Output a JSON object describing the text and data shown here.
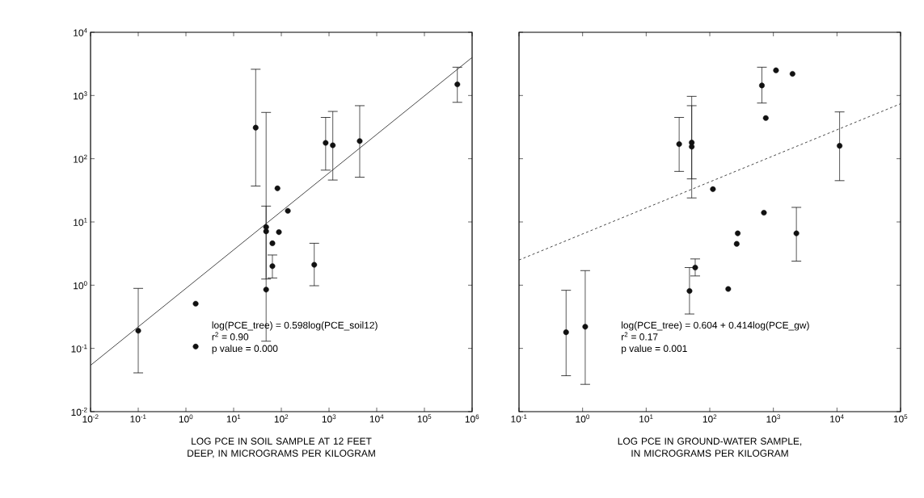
{
  "chart_data": [
    {
      "type": "scatter",
      "xlabel": "LOG PCE IN SOIL SAMPLE AT 12 FEET DEEP, IN MICROGRAMS PER KILOGRAM",
      "log": "xy",
      "xlim": [
        0.01,
        1000000
      ],
      "ylim": [
        0.01,
        10000
      ],
      "xticks": [
        {
          "value": 0.01,
          "label": "10$^{-2}$"
        },
        {
          "value": 0.1,
          "label": "10$^{-1}$"
        },
        {
          "value": 1,
          "label": "10$^{0}$"
        },
        {
          "value": 10,
          "label": "10$^{1}$"
        },
        {
          "value": 100,
          "label": "10$^{2}$"
        },
        {
          "value": 1000,
          "label": "10$^{3}$"
        },
        {
          "value": 10000,
          "label": "10$^{4}$"
        },
        {
          "value": 100000,
          "label": "10$^{5}$"
        },
        {
          "value": 1000000,
          "label": "10$^{6}$"
        }
      ],
      "yticks": [
        {
          "value": 0.01,
          "label": "10$^{-2}$"
        },
        {
          "value": 0.1,
          "label": "10$^{-1}$"
        },
        {
          "value": 1,
          "label": "10$^{0}$"
        },
        {
          "value": 10,
          "label": "10$^{1}$"
        },
        {
          "value": 100,
          "label": "10$^{2}$"
        },
        {
          "value": 1000,
          "label": "10$^{3}$"
        },
        {
          "value": 10000,
          "label": "10$^{4}$"
        }
      ],
      "annotations": [
        "log(PCE_tree) = 0.598log(PCE_soil12)",
        "r$^{2}$ = 0.90",
        "p value = 0.000"
      ],
      "series": [
        {
          "color": "#111111",
          "marker": "circle",
          "x": [
            29,
            48,
            48,
            48,
            65,
            65,
            83,
            89,
            137,
            850,
            1200,
            4400,
            490000,
            490,
            0.1,
            1.6,
            1.6
          ],
          "values": [
            310,
            8.3,
            7.1,
            0.85,
            2.0,
            4.6,
            34,
            6.9,
            15,
            178,
            163,
            190,
            1500,
            2.1,
            0.19,
            0.51,
            0.107
          ],
          "errors": [
            [
              37,
              2600
            ],
            [
              1.25,
              17.8
            ],
            null,
            [
              0.13,
              540
            ],
            [
              1.3,
              3.0
            ],
            null,
            null,
            null,
            null,
            [
              66,
              450
            ],
            [
              46,
              560
            ],
            [
              51,
              690
            ],
            [
              780,
              2800
            ],
            [
              0.98,
              4.6
            ],
            [
              0.041,
              0.89
            ],
            null,
            null
          ]
        },
        {
          "type": "line",
          "color": "#333333",
          "line_style": "solid",
          "marker": "none",
          "x": [
            0.01,
            1000000
          ],
          "values": [
            0.054,
            4000
          ]
        }
      ]
    },
    {
      "type": "scatter",
      "xlabel": "LOG PCE IN GROUND-WATER SAMPLE, IN MICROGRAMS PER KILOGRAM",
      "log": "xy",
      "tick_labels": "x",
      "xlim": [
        0.1,
        100000
      ],
      "ylim": [
        0.01,
        10000
      ],
      "xticks": [
        {
          "value": 0.1,
          "label": "10$^{-1}$"
        },
        {
          "value": 1,
          "label": "10$^{0}$"
        },
        {
          "value": 10,
          "label": "10$^{1}$"
        },
        {
          "value": 100,
          "label": "10$^{2}$"
        },
        {
          "value": 1000,
          "label": "10$^{3}$"
        },
        {
          "value": 10000,
          "label": "10$^{4}$"
        },
        {
          "value": 100000,
          "label": "10$^{5}$"
        }
      ],
      "yticks": [
        {
          "value": 0.01,
          "label": null
        },
        {
          "value": 0.1,
          "label": null
        },
        {
          "value": 1,
          "label": null
        },
        {
          "value": 10,
          "label": null
        },
        {
          "value": 100,
          "label": null
        },
        {
          "value": 1000,
          "label": null
        },
        {
          "value": 10000,
          "label": null
        }
      ],
      "annotations": [
        "log(PCE_tree) = 0.604 + 0.414log(PCE_gw)",
        "r$^{2}$ = 0.17",
        "p value = 0.001"
      ],
      "series": [
        {
          "color": "#111111",
          "marker": "circle",
          "x": [
            33,
            52,
            52,
            112,
            660,
            1100,
            2000,
            760,
            11000,
            710,
            275,
            265,
            2300,
            59,
            48,
            195,
            0.55,
            1.1
          ],
          "values": [
            170,
            180,
            155,
            33,
            1440,
            2500,
            2200,
            440,
            160,
            14,
            6.6,
            4.5,
            6.6,
            1.9,
            0.81,
            0.87,
            0.18,
            0.22
          ],
          "errors": [
            [
              63,
              450
            ],
            [
              24,
              970
            ],
            [
              48,
              690
            ],
            null,
            [
              760,
              2800
            ],
            null,
            null,
            null,
            [
              45,
              550
            ],
            null,
            null,
            null,
            [
              2.4,
              17
            ],
            [
              1.4,
              2.6
            ],
            [
              0.35,
              1.9
            ],
            null,
            [
              0.037,
              0.83
            ],
            [
              0.027,
              1.7
            ]
          ]
        },
        {
          "type": "line",
          "color": "#333333",
          "line_style": "dashed",
          "marker": "none",
          "x": [
            0.1,
            100000
          ],
          "values": [
            2.5,
            740
          ]
        }
      ]
    }
  ]
}
